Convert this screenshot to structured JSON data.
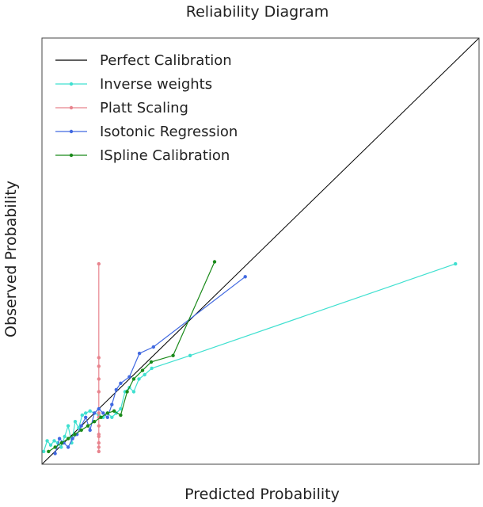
{
  "chart_data": {
    "type": "line",
    "title": "Reliability Diagram",
    "xlabel": "Predicted Probability",
    "ylabel": "Observed Probability",
    "xlim": [
      0,
      1
    ],
    "ylim": [
      0,
      1
    ],
    "grid": false,
    "legend_position": "top-left",
    "series": [
      {
        "name": "Perfect Calibration",
        "color": "#000000",
        "markers": false,
        "x": [
          0,
          1
        ],
        "y": [
          0,
          1
        ]
      },
      {
        "name": "Inverse weights",
        "color": "#40e0d0",
        "markers": true,
        "x": [
          0.004,
          0.012,
          0.02,
          0.028,
          0.036,
          0.044,
          0.052,
          0.06,
          0.068,
          0.076,
          0.084,
          0.092,
          0.1,
          0.11,
          0.12,
          0.13,
          0.14,
          0.15,
          0.16,
          0.17,
          0.18,
          0.19,
          0.2,
          0.21,
          0.222,
          0.235,
          0.251,
          0.339,
          0.946
        ],
        "y": [
          0.03,
          0.055,
          0.045,
          0.055,
          0.05,
          0.04,
          0.065,
          0.09,
          0.05,
          0.1,
          0.085,
          0.115,
          0.12,
          0.125,
          0.12,
          0.115,
          0.11,
          0.12,
          0.11,
          0.12,
          0.13,
          0.17,
          0.18,
          0.17,
          0.2,
          0.21,
          0.225,
          0.255,
          0.47
        ]
      },
      {
        "name": "Platt Scaling",
        "color": "#e8848e",
        "markers": true,
        "x": [
          0.13,
          0.13,
          0.13,
          0.13,
          0.13,
          0.13,
          0.13,
          0.13,
          0.13,
          0.13,
          0.13,
          0.13,
          0.13
        ],
        "y": [
          0.47,
          0.25,
          0.23,
          0.2,
          0.17,
          0.12,
          0.11,
          0.09,
          0.07,
          0.065,
          0.05,
          0.04,
          0.03
        ]
      },
      {
        "name": "Isotonic Regression",
        "color": "#4169e1",
        "markers": true,
        "x": [
          0.03,
          0.04,
          0.05,
          0.06,
          0.07,
          0.08,
          0.09,
          0.1,
          0.11,
          0.12,
          0.13,
          0.14,
          0.15,
          0.16,
          0.17,
          0.18,
          0.2,
          0.223,
          0.255,
          0.465
        ],
        "y": [
          0.025,
          0.06,
          0.05,
          0.04,
          0.06,
          0.07,
          0.09,
          0.11,
          0.08,
          0.12,
          0.13,
          0.12,
          0.11,
          0.14,
          0.175,
          0.19,
          0.205,
          0.26,
          0.275,
          0.44
        ]
      },
      {
        "name": "ISpline Calibration",
        "color": "#1a8a1a",
        "markers": true,
        "x": [
          0.015,
          0.03,
          0.045,
          0.06,
          0.075,
          0.09,
          0.105,
          0.12,
          0.135,
          0.15,
          0.165,
          0.18,
          0.195,
          0.21,
          0.23,
          0.25,
          0.3,
          0.395
        ],
        "y": [
          0.03,
          0.04,
          0.05,
          0.06,
          0.07,
          0.08,
          0.09,
          0.1,
          0.11,
          0.12,
          0.125,
          0.115,
          0.17,
          0.2,
          0.22,
          0.24,
          0.255,
          0.475
        ]
      }
    ]
  }
}
